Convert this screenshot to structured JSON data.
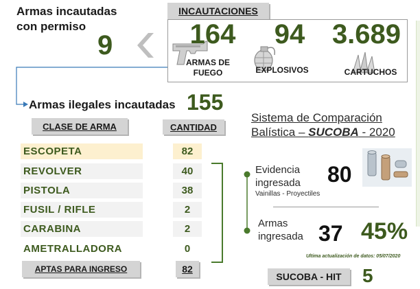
{
  "permit": {
    "title_line1": "Armas incautadas",
    "title_line2": "con permiso",
    "count": "9"
  },
  "seizures": {
    "header": "INCAUTACIONES",
    "items": [
      {
        "value": "164",
        "label_line1": "ARMAS DE",
        "label_line2": "FUEGO",
        "icon": "pistol-icon"
      },
      {
        "value": "94",
        "label_line1": "EXPLOSIVOS",
        "label_line2": "",
        "icon": "grenade-icon"
      },
      {
        "value": "3.689",
        "label_line1": "CARTUCHOS",
        "label_line2": "",
        "icon": "cartridge-icon"
      }
    ]
  },
  "illegal": {
    "title": "Armas ilegales incautadas",
    "count": "155"
  },
  "table": {
    "header_class": "CLASE DE ARMA",
    "header_qty": "CANTIDAD",
    "rows": [
      {
        "name": "ESCOPETA",
        "qty": "82"
      },
      {
        "name": "REVOLVER",
        "qty": "40"
      },
      {
        "name": "PISTOLA",
        "qty": "38"
      },
      {
        "name": "FUSIL / RIFLE",
        "qty": "2"
      },
      {
        "name": "CARABINA",
        "qty": "2"
      },
      {
        "name": "AMETRALLADORA",
        "qty": "0"
      }
    ],
    "footer_label": "APTAS PARA INGRESO",
    "footer_qty": "82"
  },
  "sucoba": {
    "title_line1": "Sistema de Comparación",
    "title_line2_prefix": "Balística – ",
    "title_brand": "SUCOBA",
    "title_line2_suffix": " - 2020",
    "evidence_label_line1": "Evidencia",
    "evidence_label_line2": "ingresada",
    "evidence_sub": "Vainillas - Proyectiles",
    "evidence_count": "80",
    "arms_label_line1": "Armas",
    "arms_label_line2": "ingresada",
    "arms_count": "37",
    "arms_percent": "45%",
    "update_note": "Ultima actualización de datos:  05/07/2020",
    "hit_label": "SUCOBA - HIT",
    "hit_count": "5"
  },
  "colors": {
    "accent_green": "#3d5a1e",
    "highlight_row": "#fdf0cf",
    "connector_blue": "#3a7ab8"
  }
}
